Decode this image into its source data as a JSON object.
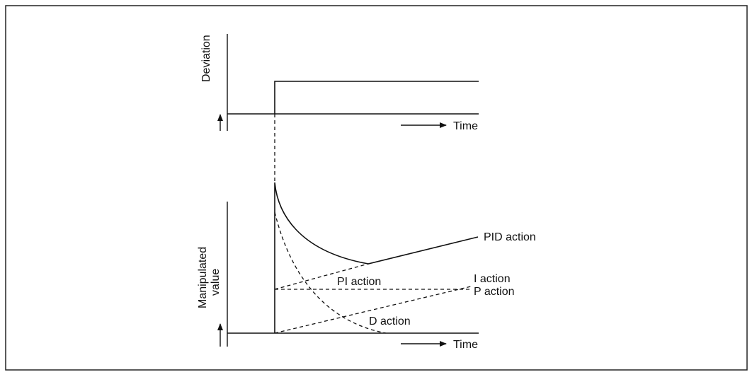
{
  "top_chart": {
    "y_label": "Deviation",
    "x_label": "Time"
  },
  "bottom_chart": {
    "y_label": [
      "Manipulated",
      "value"
    ],
    "x_label": "Time",
    "curves": {
      "pid": "PID action",
      "pi": "PI action",
      "i": "I action",
      "p": "P action",
      "d": "D action"
    }
  }
}
